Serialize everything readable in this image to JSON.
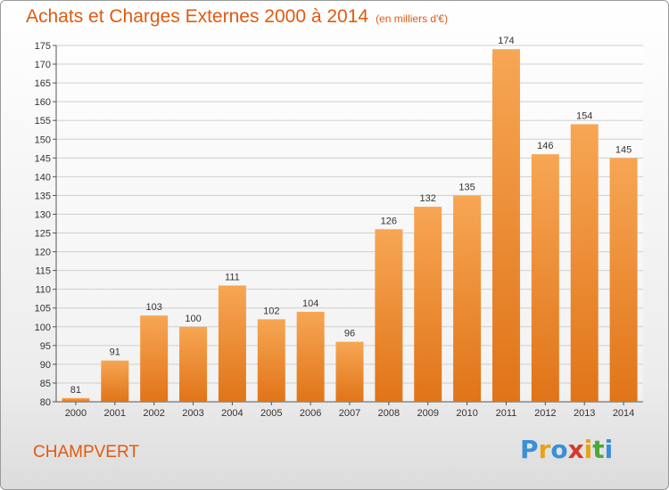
{
  "header": {
    "title": "Achats et Charges Externes 2000 à 2014",
    "unit": "(en milliers d'€)"
  },
  "footer": {
    "place": "CHAMPVERT",
    "logo_letters": [
      "P",
      "r",
      "o",
      "x",
      "i",
      "t",
      "i"
    ],
    "logo_colors": [
      "#3a8fd6",
      "#e8a21a",
      "#3a8fd6",
      "#d43a2a",
      "#e8a21a",
      "#4aa83a",
      "#3a8fd6"
    ]
  },
  "colors": {
    "bar_top": "#f7a654",
    "bar_bottom": "#e07418",
    "title": "#e05a10",
    "grid": "#cfcfcf"
  },
  "chart_data": {
    "type": "bar",
    "title": "Achats et Charges Externes 2000 à 2014",
    "subtitle": "(en milliers d'€)",
    "xlabel": "",
    "ylabel": "",
    "categories": [
      "2000",
      "2001",
      "2002",
      "2003",
      "2004",
      "2005",
      "2006",
      "2007",
      "2008",
      "2009",
      "2010",
      "2011",
      "2012",
      "2013",
      "2014"
    ],
    "values": [
      81,
      91,
      103,
      100,
      111,
      102,
      104,
      96,
      126,
      132,
      135,
      174,
      146,
      154,
      145
    ],
    "ylim": [
      80,
      175
    ],
    "yticks": [
      80,
      85,
      90,
      95,
      100,
      105,
      110,
      115,
      120,
      125,
      130,
      135,
      140,
      145,
      150,
      155,
      160,
      165,
      170,
      175
    ],
    "grid": true,
    "legend": "none"
  }
}
